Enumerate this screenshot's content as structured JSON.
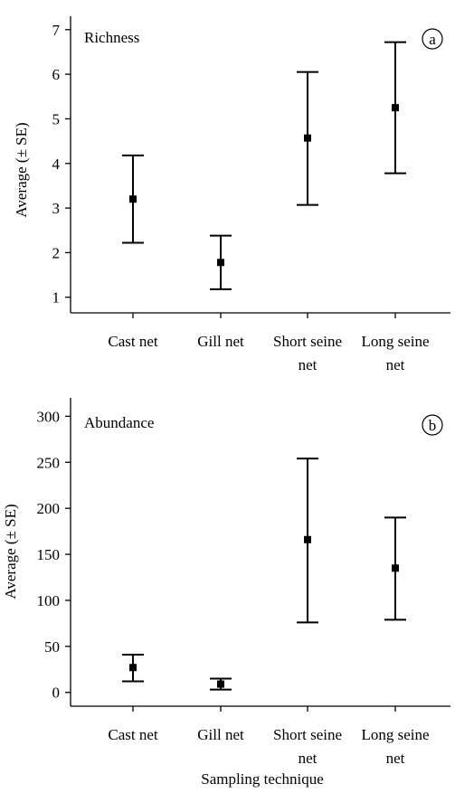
{
  "chart_data": [
    {
      "type": "scatter",
      "title": "Richness",
      "panel_letter": "a",
      "ylabel": "Average (± SE)",
      "xlabel": "",
      "ylim": [
        0.65,
        7.3
      ],
      "yticks": [
        1,
        2,
        3,
        4,
        5,
        6,
        7
      ],
      "categories": [
        [
          "Cast net"
        ],
        [
          "Gill net"
        ],
        [
          "Short seine",
          "net"
        ],
        [
          "Long seine",
          "net"
        ]
      ],
      "series": [
        {
          "values": [
            3.2,
            1.78,
            4.57,
            5.25
          ],
          "lower": [
            2.22,
            1.18,
            3.07,
            3.78
          ],
          "upper": [
            4.18,
            2.38,
            6.05,
            6.72
          ]
        }
      ]
    },
    {
      "type": "scatter",
      "title": "Abundance",
      "panel_letter": "b",
      "ylabel": "Average (± SE)",
      "xlabel": "Sampling technique",
      "ylim": [
        -15,
        320
      ],
      "yticks": [
        0,
        50,
        100,
        150,
        200,
        250,
        300
      ],
      "categories": [
        [
          "Cast net"
        ],
        [
          "Gill net"
        ],
        [
          "Short seine",
          "net"
        ],
        [
          "Long seine",
          "net"
        ]
      ],
      "series": [
        {
          "values": [
            27,
            9,
            166,
            135
          ],
          "lower": [
            12,
            3,
            76,
            79
          ],
          "upper": [
            41,
            15,
            254,
            190
          ]
        }
      ]
    }
  ]
}
